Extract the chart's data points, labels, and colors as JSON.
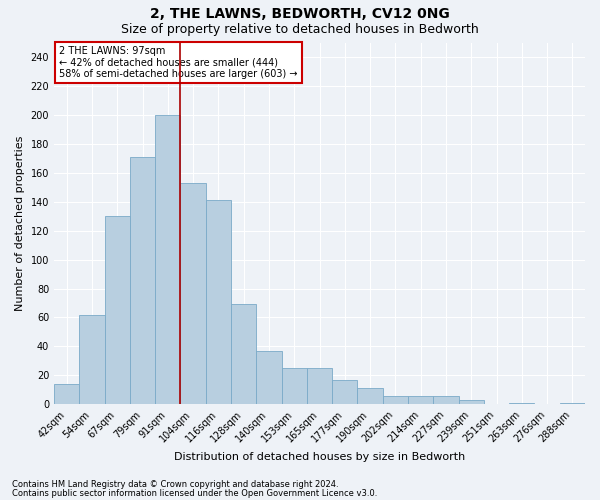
{
  "title": "2, THE LAWNS, BEDWORTH, CV12 0NG",
  "subtitle": "Size of property relative to detached houses in Bedworth",
  "xlabel": "Distribution of detached houses by size in Bedworth",
  "ylabel": "Number of detached properties",
  "bar_color": "#b8cfe0",
  "bar_edge_color": "#7aaac8",
  "background_color": "#eef2f7",
  "grid_color": "#ffffff",
  "categories": [
    "42sqm",
    "54sqm",
    "67sqm",
    "79sqm",
    "91sqm",
    "104sqm",
    "116sqm",
    "128sqm",
    "140sqm",
    "153sqm",
    "165sqm",
    "177sqm",
    "190sqm",
    "202sqm",
    "214sqm",
    "227sqm",
    "239sqm",
    "251sqm",
    "263sqm",
    "276sqm",
    "288sqm"
  ],
  "values": [
    14,
    62,
    130,
    171,
    200,
    153,
    141,
    69,
    37,
    25,
    25,
    17,
    11,
    6,
    6,
    6,
    3,
    0,
    1,
    0,
    1
  ],
  "ylim": [
    0,
    250
  ],
  "yticks": [
    0,
    20,
    40,
    60,
    80,
    100,
    120,
    140,
    160,
    180,
    200,
    220,
    240
  ],
  "property_label": "2 THE LAWNS: 97sqm",
  "annotation_line1": "← 42% of detached houses are smaller (444)",
  "annotation_line2": "58% of semi-detached houses are larger (603) →",
  "red_line_x": 4.5,
  "footnote1": "Contains HM Land Registry data © Crown copyright and database right 2024.",
  "footnote2": "Contains public sector information licensed under the Open Government Licence v3.0.",
  "title_fontsize": 10,
  "subtitle_fontsize": 9,
  "tick_fontsize": 7,
  "ylabel_fontsize": 8,
  "xlabel_fontsize": 8,
  "annotation_fontsize": 7,
  "footnote_fontsize": 6,
  "annotation_box_color": "#ffffff",
  "annotation_box_edge": "#cc0000",
  "red_line_color": "#aa0000"
}
